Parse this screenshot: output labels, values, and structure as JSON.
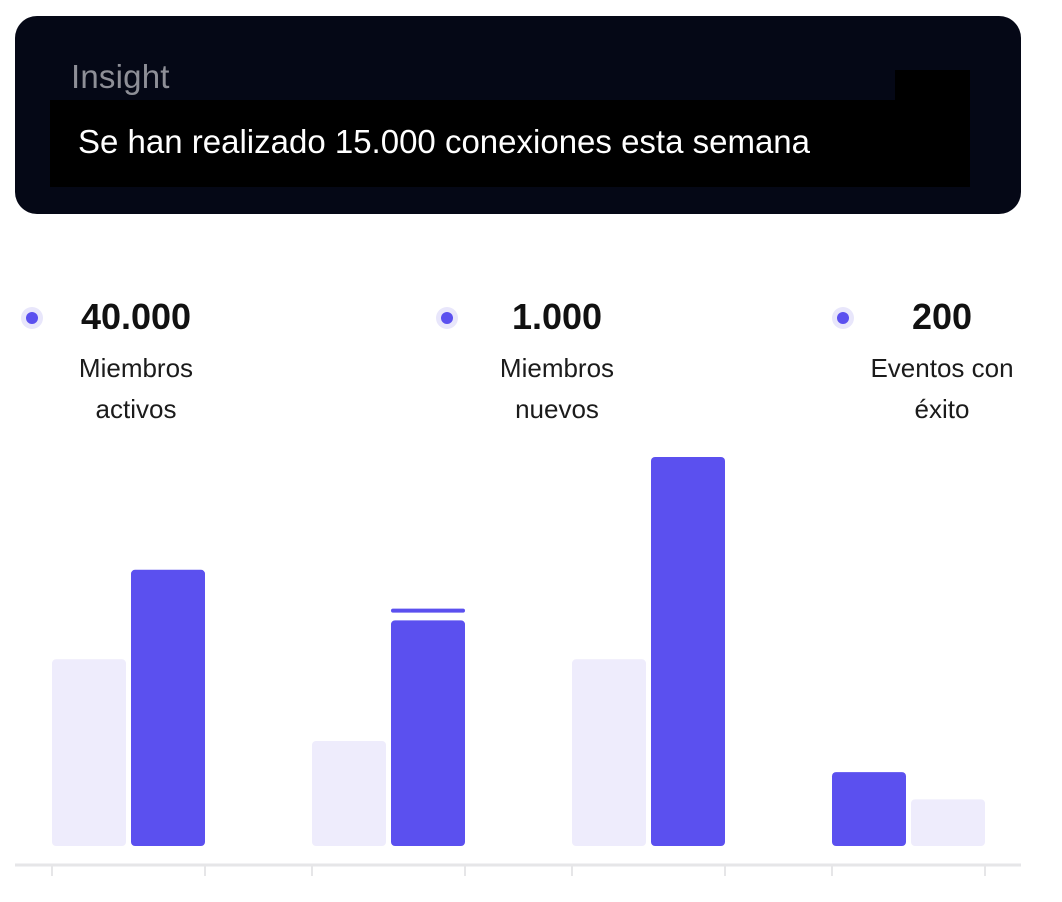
{
  "insight": {
    "label": "Insight",
    "message": "Se han realizado 15.000 conexiones esta semana"
  },
  "stats": [
    {
      "value": "40.000",
      "label_line1": "Miembros",
      "label_line2": "activos"
    },
    {
      "value": "1.000",
      "label_line1": "Miembros",
      "label_line2": "nuevos"
    },
    {
      "value": "200",
      "label_line1": "Eventos con",
      "label_line2": "éxito"
    }
  ],
  "colors": {
    "card_background": "#050816",
    "accent": "#5b50ef",
    "light_bar": "#eeecfc",
    "axis": "#e6e6e8"
  },
  "chart_data": {
    "type": "bar",
    "title": "",
    "xlabel": "",
    "ylabel": "",
    "categories": [
      "",
      "",
      "",
      ""
    ],
    "ylim": [
      0,
      100
    ],
    "grid": false,
    "legend": "none",
    "bars": [
      {
        "group": 0,
        "slot": 0,
        "value": 48,
        "style": "light"
      },
      {
        "group": 0,
        "slot": 1,
        "value": 71,
        "style": "accent"
      },
      {
        "group": 1,
        "slot": 0,
        "value": 27,
        "style": "light"
      },
      {
        "group": 1,
        "slot": 1,
        "value": 58,
        "style": "accent",
        "marker_value": 60.5
      },
      {
        "group": 2,
        "slot": 0,
        "value": 48,
        "style": "light"
      },
      {
        "group": 2,
        "slot": 1,
        "value": 100,
        "style": "accent"
      },
      {
        "group": 3,
        "slot": 0,
        "value": 19,
        "style": "accent"
      },
      {
        "group": 3,
        "slot": 1,
        "value": 12,
        "style": "light"
      }
    ]
  }
}
